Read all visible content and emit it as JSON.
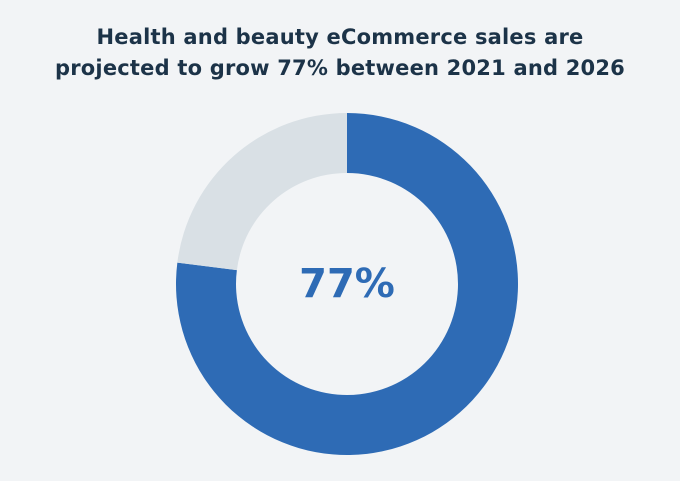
{
  "title_lines": [
    "Health and beauty eCommerce sales are",
    "projected to grow 77% between 2021 and 2026"
  ],
  "colors": {
    "background": "#f2f4f6",
    "title": "#1c3348",
    "value_slice": "#2e6bb5",
    "remainder_slice": "#d9e0e5"
  },
  "chart_data": {
    "type": "pie",
    "title": "Health and beauty eCommerce sales are projected to grow 77% between 2021 and 2026",
    "center_label": "77%",
    "slices": [
      {
        "label": "",
        "value": 77
      },
      {
        "label": "",
        "value": 23
      }
    ],
    "donut": true,
    "legend": "none"
  }
}
